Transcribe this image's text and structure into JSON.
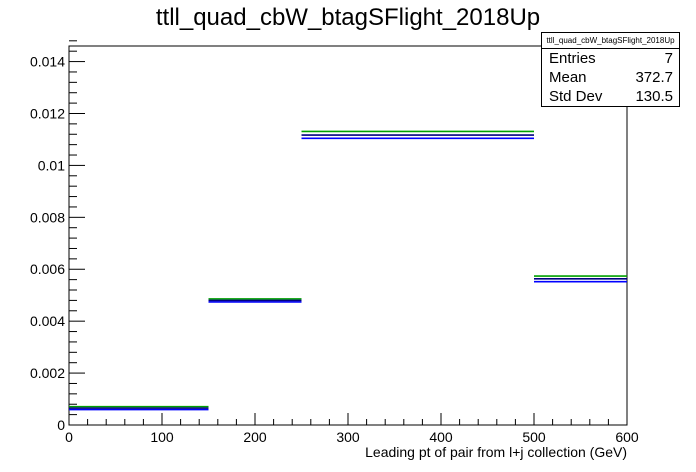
{
  "title": "ttll_quad_cbW_btagSFlight_2018Up",
  "stats": {
    "name": "ttll_quad_cbW_btagSFlight_2018Up",
    "rows": [
      {
        "label": "Entries",
        "value": "7"
      },
      {
        "label": "Mean",
        "value": "372.7"
      },
      {
        "label": "Std Dev",
        "value": "130.5"
      }
    ]
  },
  "colors": {
    "nominal": "#000080",
    "variation_up": "#00a000",
    "variation_down": "#0000ff",
    "axis": "#000000"
  },
  "chart_data": {
    "type": "line",
    "style": "step-histogram",
    "title": "ttll_quad_cbW_btagSFlight_2018Up",
    "xlabel": "Leading pt of pair from l+j collection (GeV)",
    "ylabel": "",
    "xlim": [
      0,
      600
    ],
    "ylim": [
      0,
      0.0146
    ],
    "x_ticks": [
      0,
      100,
      200,
      300,
      400,
      500,
      600
    ],
    "y_ticks": [
      0,
      0.002,
      0.004,
      0.006,
      0.008,
      0.01,
      0.012,
      0.014
    ],
    "y_tick_labels": [
      "0",
      "0.002",
      "0.004",
      "0.006",
      "0.008",
      "0.01",
      "0.012",
      "0.014"
    ],
    "bins": [
      [
        0,
        150
      ],
      [
        150,
        250
      ],
      [
        250,
        500
      ],
      [
        500,
        600
      ]
    ],
    "series": [
      {
        "values": [
          0.00065,
          0.0048,
          0.01125,
          0.00568
        ],
        "color": "#00a000"
      },
      {
        "values": [
          0.00065,
          0.0048,
          0.0111,
          0.00558
        ],
        "color": "#0000ff"
      },
      {
        "values": [
          0.00065,
          0.0048,
          0.01117,
          0.00563
        ],
        "color": "#000080"
      }
    ],
    "grid": false,
    "legend": "none"
  }
}
